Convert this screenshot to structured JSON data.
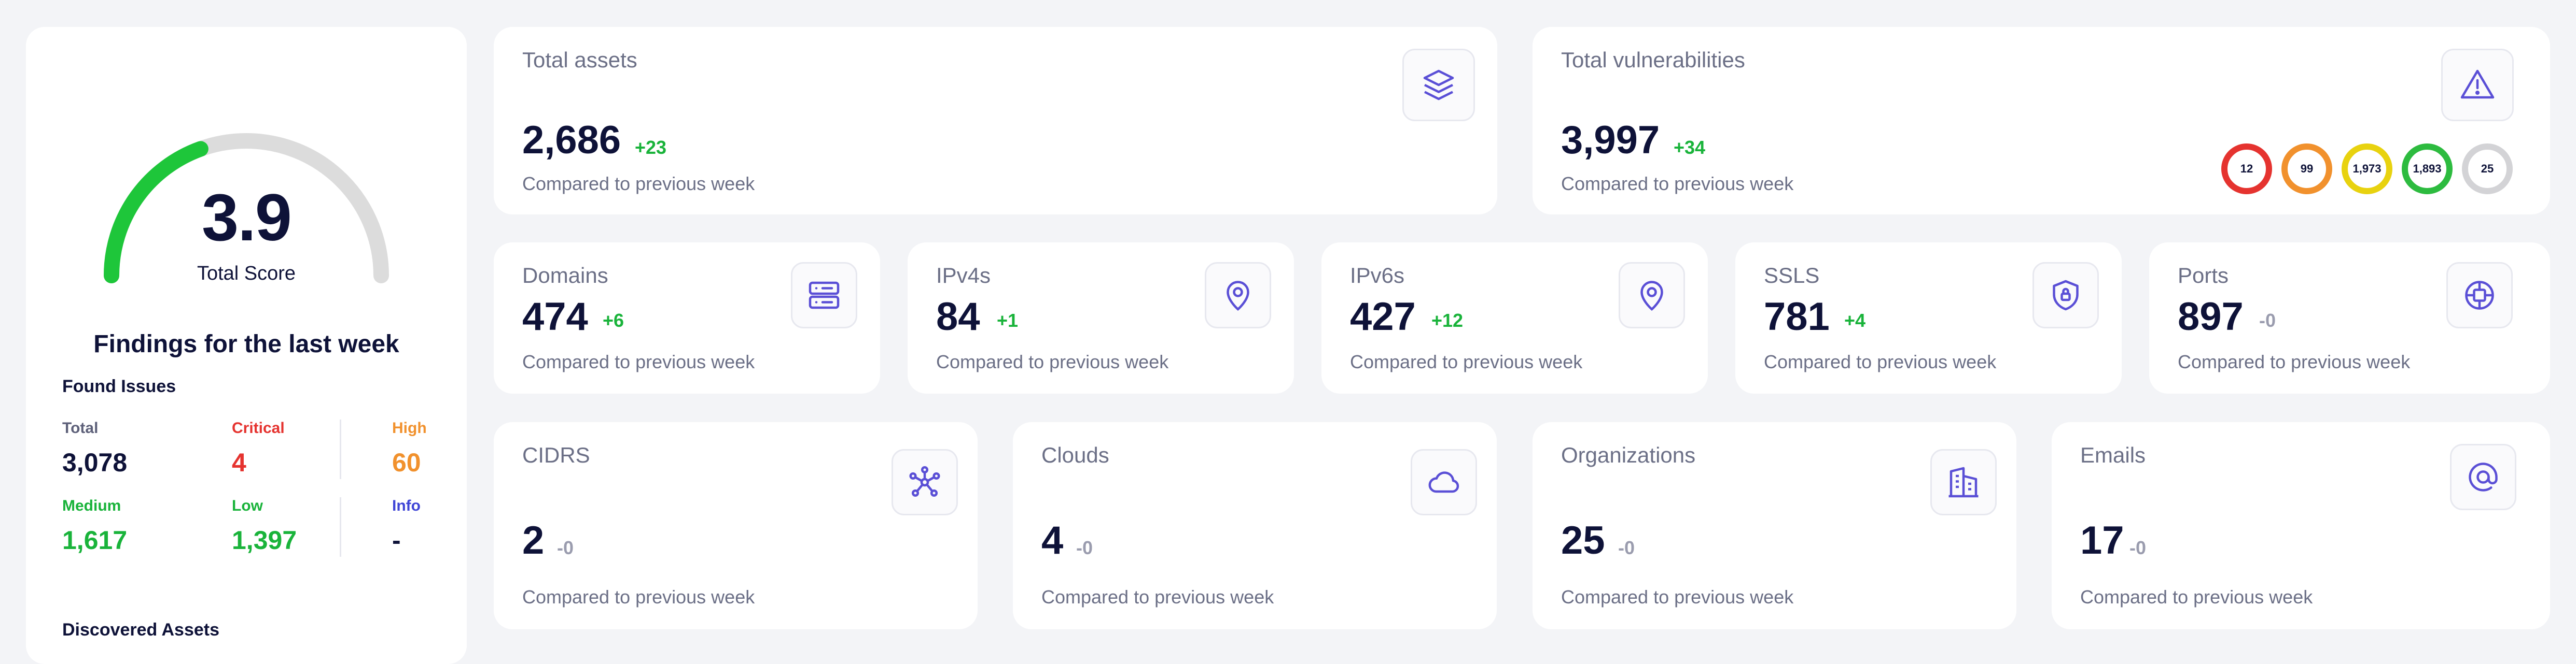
{
  "score": {
    "value": "3.9",
    "label": "Total Score",
    "fraction": 0.39,
    "findings_title": "Findings for the last week",
    "colors": {
      "filled": "#1ec63a",
      "track": "#dcdcdc"
    }
  },
  "found_issues": {
    "title": "Found Issues",
    "items": [
      {
        "label": "Total",
        "value": "3,078",
        "color": "#5d6079"
      },
      {
        "label": "Critical",
        "value": "4",
        "color": "#e5332f"
      },
      {
        "label": "High",
        "value": "60",
        "color": "#f1912d"
      },
      {
        "label": "Medium",
        "value": "1,617",
        "color": "#19b33a"
      },
      {
        "label": "Low",
        "value": "1,397",
        "color": "#19b33a"
      },
      {
        "label": "Info",
        "value": "-",
        "color": "#3f45d6"
      }
    ]
  },
  "discovered_assets": {
    "title": "Discovered Assets"
  },
  "cards": {
    "total_assets": {
      "title": "Total assets",
      "value": "2,686",
      "delta": "+23",
      "sub": "Compared to previous week",
      "icon": "layers-icon"
    },
    "total_vulnerabilities": {
      "title": "Total vulnerabilities",
      "value": "3,997",
      "delta": "+34",
      "sub": "Compared to previous week",
      "icon": "warning-icon",
      "severity_counts": [
        {
          "value": "12",
          "color": "#e5332f"
        },
        {
          "value": "99",
          "color": "#f1912d"
        },
        {
          "value": "1,973",
          "color": "#e8d20f"
        },
        {
          "value": "1,893",
          "color": "#2dbb3f"
        },
        {
          "value": "25",
          "color": "#d3d3d6"
        }
      ]
    },
    "domains": {
      "title": "Domains",
      "value": "474",
      "delta": "+6",
      "sub": "Compared to previous week",
      "icon": "server-icon"
    },
    "ipv4s": {
      "title": "IPv4s",
      "value": "84",
      "delta": "+1",
      "sub": "Compared to previous week",
      "icon": "location-pin-icon"
    },
    "ipv6s": {
      "title": "IPv6s",
      "value": "427",
      "delta": "+12",
      "sub": "Compared to previous week",
      "icon": "location-pin-icon"
    },
    "ssls": {
      "title": "SSLS",
      "value": "781",
      "delta": "+4",
      "sub": "Compared to previous week",
      "icon": "shield-lock-icon"
    },
    "ports": {
      "title": "Ports",
      "value": "897",
      "delta": "-0",
      "sub": "Compared to previous week",
      "icon": "port-icon"
    },
    "cidrs": {
      "title": "CIDRS",
      "value": "2",
      "delta": "-0",
      "sub": "Compared to previous week",
      "icon": "network-icon"
    },
    "clouds": {
      "title": "Clouds",
      "value": "4",
      "delta": "-0",
      "sub": "Compared to previous week",
      "icon": "cloud-icon"
    },
    "organizations": {
      "title": "Organizations",
      "value": "25",
      "delta": "-0",
      "sub": "Compared to previous week",
      "icon": "building-icon"
    },
    "emails": {
      "title": "Emails",
      "value": "17",
      "delta": "-0",
      "sub": "Compared to previous week",
      "icon": "at-sign-icon"
    }
  },
  "colors": {
    "accent": "#5a4fd6",
    "up": "#19b33a",
    "neutral": "#9a9cae"
  }
}
